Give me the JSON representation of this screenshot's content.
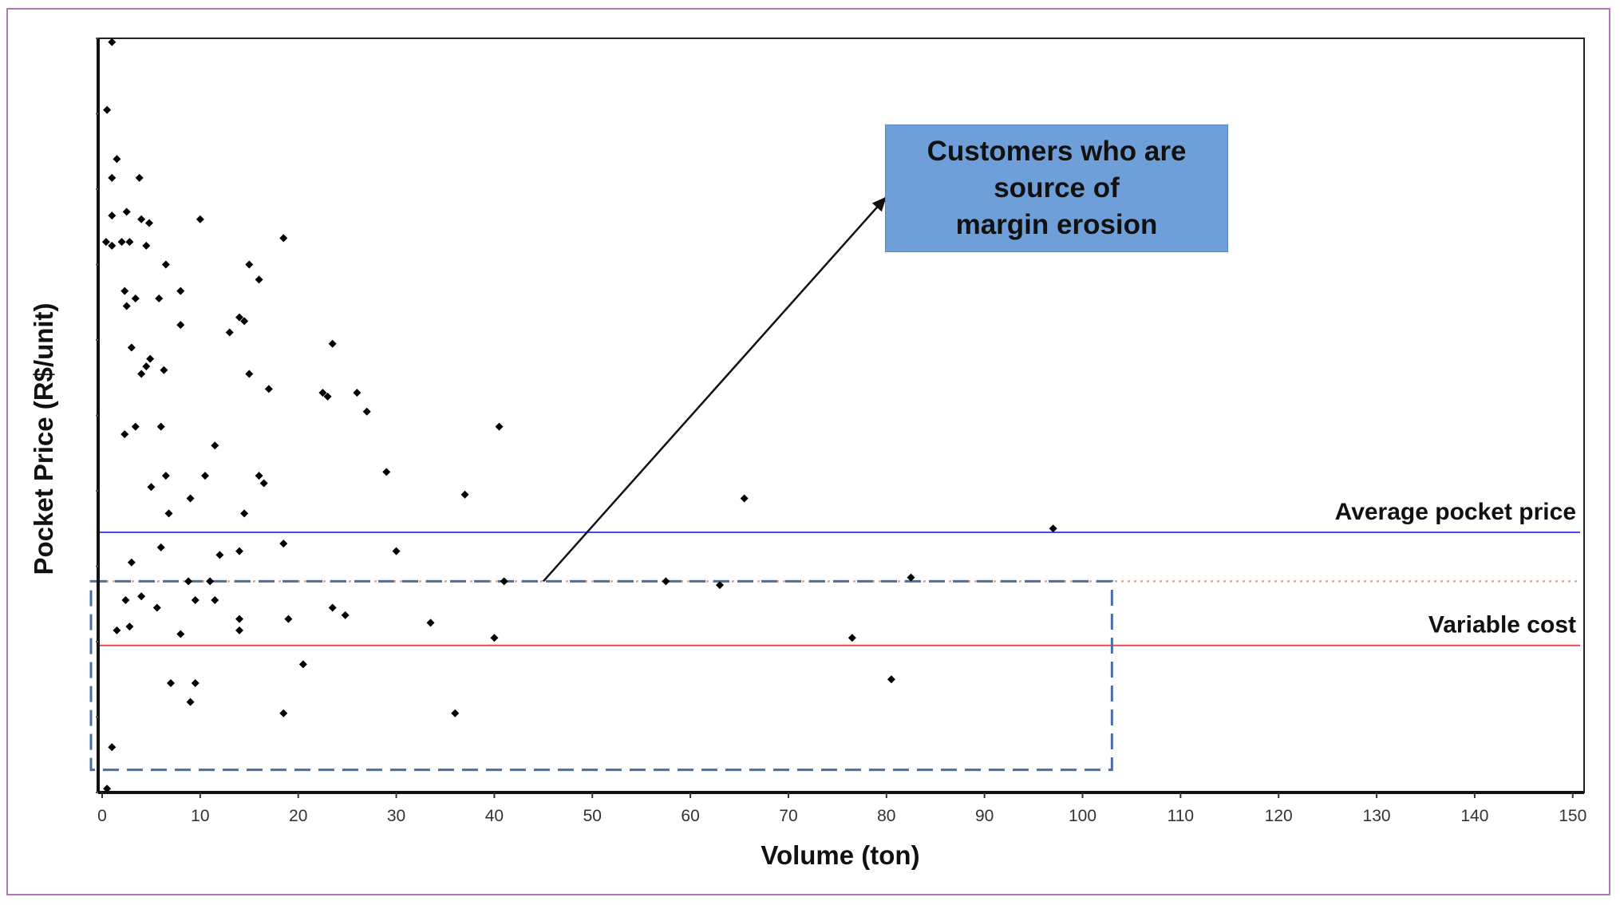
{
  "chart_data": {
    "type": "scatter",
    "title": "",
    "xlabel": "Volume (ton)",
    "ylabel": "Pocket Price (R$/unit)",
    "xlim": [
      -1,
      152
    ],
    "ylim": [
      0,
      100
    ],
    "x_ticks": [
      0,
      10,
      20,
      30,
      40,
      50,
      60,
      70,
      80,
      90,
      100,
      110,
      120,
      130,
      140,
      150
    ],
    "y_tick_labels_shown": false,
    "grid": false,
    "reference_lines": [
      {
        "name": "Average pocket price",
        "y": 34.5,
        "color": "#4a4af0",
        "style": "solid"
      },
      {
        "name": "",
        "y": 28,
        "color": "#f2a07a",
        "style": "dotted"
      },
      {
        "name": "Variable cost",
        "y": 19.5,
        "color": "#e84a4a",
        "style": "solid"
      }
    ],
    "highlight_region": {
      "x": [
        -1,
        103
      ],
      "y": [
        3,
        28
      ],
      "color": "#4a6fa0",
      "style": "dashed"
    },
    "annotation": {
      "text": "Customers who are\nsource of\nmargin erosion",
      "background": "#6f9fd8",
      "arrow_from": [
        45,
        28
      ],
      "arrow_to": [
        80,
        79
      ]
    },
    "points": [
      [
        1,
        99.5
      ],
      [
        0.5,
        90.5
      ],
      [
        1.5,
        84
      ],
      [
        1,
        81.5
      ],
      [
        3.8,
        81.5
      ],
      [
        2.5,
        77
      ],
      [
        1,
        76.5
      ],
      [
        4,
        76
      ],
      [
        4.8,
        75.5
      ],
      [
        10,
        76
      ],
      [
        0.4,
        73
      ],
      [
        1,
        72.5
      ],
      [
        2,
        73
      ],
      [
        2.8,
        73
      ],
      [
        4.5,
        72.5
      ],
      [
        18.5,
        73.5
      ],
      [
        6.5,
        70
      ],
      [
        15,
        70
      ],
      [
        16,
        68
      ],
      [
        2.3,
        66.5
      ],
      [
        3.4,
        65.5
      ],
      [
        5.8,
        65.5
      ],
      [
        8,
        66.5
      ],
      [
        2.5,
        64.5
      ],
      [
        14,
        63
      ],
      [
        14.5,
        62.5
      ],
      [
        8,
        62
      ],
      [
        13,
        61
      ],
      [
        23.5,
        59.5
      ],
      [
        3,
        59
      ],
      [
        4.9,
        57.5
      ],
      [
        4.5,
        56.5
      ],
      [
        6.3,
        56
      ],
      [
        4,
        55.5
      ],
      [
        15,
        55.5
      ],
      [
        17,
        53.5
      ],
      [
        22.5,
        53
      ],
      [
        23,
        52.5
      ],
      [
        26,
        53
      ],
      [
        27,
        50.5
      ],
      [
        3.4,
        48.5
      ],
      [
        6,
        48.5
      ],
      [
        40.5,
        48.5
      ],
      [
        2.3,
        47.5
      ],
      [
        11.5,
        46
      ],
      [
        6.5,
        42
      ],
      [
        10.5,
        42
      ],
      [
        16.5,
        41
      ],
      [
        16,
        42
      ],
      [
        29,
        42.5
      ],
      [
        5,
        40.5
      ],
      [
        9,
        39
      ],
      [
        37,
        39.5
      ],
      [
        65.5,
        39
      ],
      [
        6.8,
        37
      ],
      [
        14.5,
        37
      ],
      [
        97,
        35
      ],
      [
        18.5,
        33
      ],
      [
        6,
        32.5
      ],
      [
        30,
        32
      ],
      [
        12,
        31.5
      ],
      [
        14,
        32
      ],
      [
        3,
        30.5
      ],
      [
        8.8,
        28
      ],
      [
        11,
        28
      ],
      [
        41,
        28
      ],
      [
        57.5,
        28
      ],
      [
        63,
        27.5
      ],
      [
        82.5,
        28.5
      ],
      [
        4,
        26
      ],
      [
        2.4,
        25.5
      ],
      [
        9.5,
        25.5
      ],
      [
        11.5,
        25.5
      ],
      [
        23.5,
        24.5
      ],
      [
        24.8,
        23.5
      ],
      [
        5.6,
        24.5
      ],
      [
        14,
        23
      ],
      [
        19,
        23
      ],
      [
        33.5,
        22.5
      ],
      [
        1.5,
        21.5
      ],
      [
        2.8,
        22
      ],
      [
        8,
        21
      ],
      [
        14,
        21.5
      ],
      [
        40,
        20.5
      ],
      [
        76.5,
        20.5
      ],
      [
        20.5,
        17
      ],
      [
        80.5,
        15
      ],
      [
        7,
        14.5
      ],
      [
        9.5,
        14.5
      ],
      [
        9,
        12
      ],
      [
        18.5,
        10.5
      ],
      [
        36,
        10.5
      ],
      [
        1,
        6
      ],
      [
        0.5,
        0.5
      ]
    ]
  }
}
